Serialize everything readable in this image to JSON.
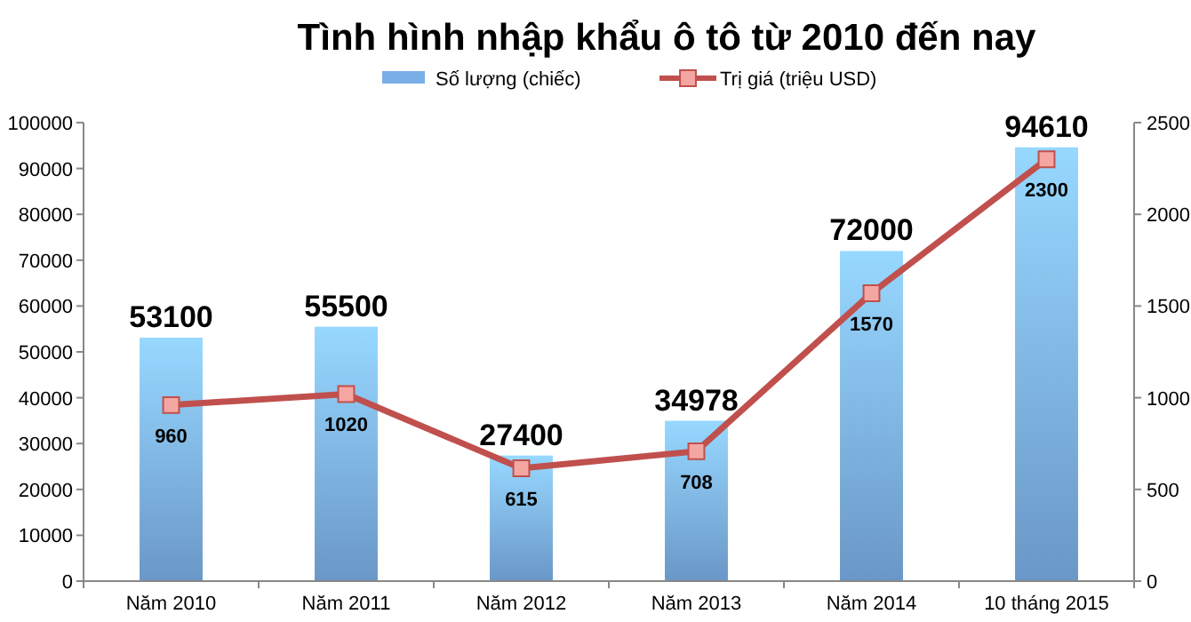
{
  "chart_data": {
    "type": "bar",
    "title": "Tình hình nhập khẩu ô tô từ 2010 đến nay",
    "categories": [
      "Năm 2010",
      "Năm 2011",
      "Năm 2012",
      "Năm 2013",
      "Năm 2014",
      "10 tháng 2015"
    ],
    "series": [
      {
        "name": "Số lượng (chiếc)",
        "color": "#7aaee6",
        "values": [
          53100,
          55500,
          27400,
          34978,
          72000,
          94610
        ]
      },
      {
        "name": "Trị giá (triệu USD)",
        "type": "line",
        "axis": "y2",
        "color": "#c0504d",
        "marker": "square",
        "values": [
          960,
          1020,
          615,
          708,
          1570,
          2300
        ]
      }
    ],
    "ylim": [
      0,
      100000
    ],
    "yticks": [
      0,
      10000,
      20000,
      30000,
      40000,
      50000,
      60000,
      70000,
      80000,
      90000,
      100000
    ],
    "y2lim": [
      0,
      2500
    ],
    "y2ticks": [
      0,
      500,
      1000,
      1500,
      2000,
      2500
    ],
    "data_labels": true,
    "legend": "top",
    "grid": false
  }
}
